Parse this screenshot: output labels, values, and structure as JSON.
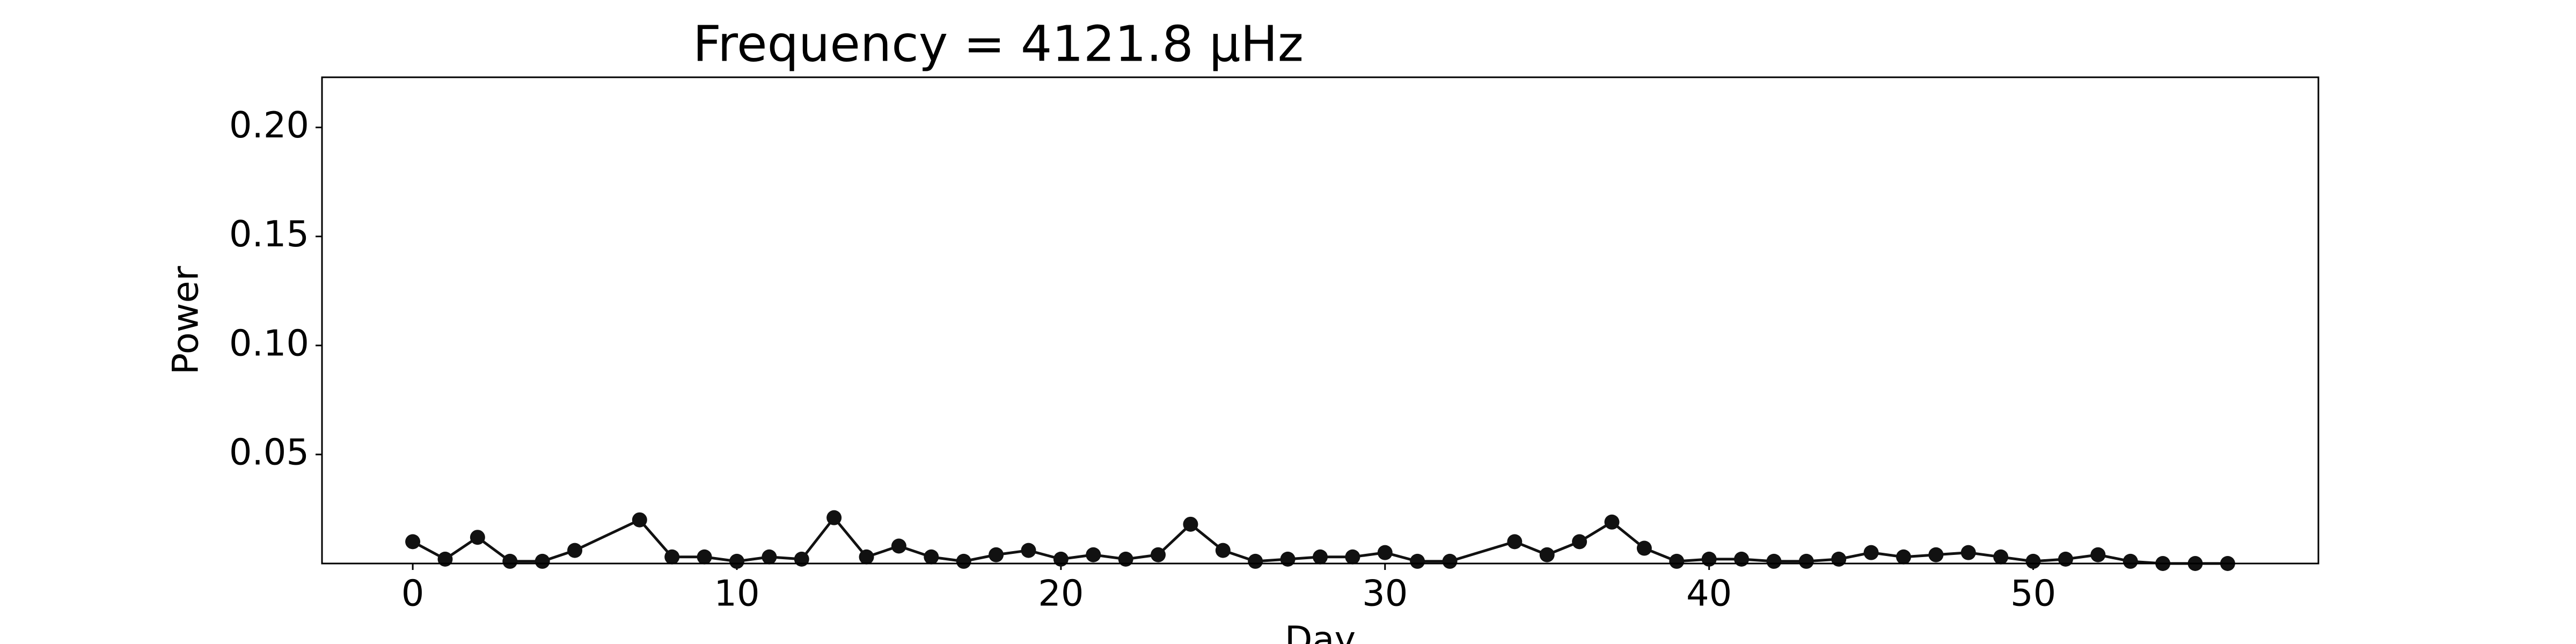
{
  "chart_data": {
    "type": "line",
    "title": "Frequency = 4121.8 μHz",
    "x_label": "Day",
    "y_label": "Power",
    "x": [
      0,
      1,
      2,
      3,
      4,
      5,
      7,
      8,
      9,
      10,
      11,
      12,
      13,
      14,
      15,
      16,
      17,
      18,
      19,
      20,
      21,
      22,
      23,
      24,
      25,
      26,
      27,
      28,
      29,
      30,
      31,
      32,
      34,
      35,
      36,
      37,
      38,
      39,
      40,
      41,
      42,
      43,
      44,
      45,
      46,
      47,
      48,
      49,
      50,
      51,
      52,
      53,
      54,
      55,
      56
    ],
    "values": [
      0.01,
      0.002,
      0.012,
      0.001,
      0.001,
      0.006,
      0.02,
      0.003,
      0.003,
      0.001,
      0.003,
      0.002,
      0.021,
      0.003,
      0.008,
      0.003,
      0.001,
      0.004,
      0.006,
      0.002,
      0.004,
      0.002,
      0.004,
      0.018,
      0.006,
      0.001,
      0.002,
      0.003,
      0.003,
      0.005,
      0.001,
      0.001,
      0.01,
      0.004,
      0.01,
      0.019,
      0.007,
      0.001,
      0.002,
      0.002,
      0.001,
      0.001,
      0.002,
      0.005,
      0.003,
      0.004,
      0.005,
      0.003,
      0.001,
      0.002,
      0.004,
      0.001,
      0,
      0,
      0
    ],
    "color": "#111111",
    "xlim": [
      -2.8,
      58.8
    ],
    "xticks": [
      0,
      10,
      20,
      30,
      40,
      50
    ],
    "ylim": [
      0,
      0.223
    ],
    "yticks": [
      0.05,
      {
        "value": 0.1,
        "label": "0.10"
      },
      0.15,
      {
        "value": 0.2,
        "label": "0.20"
      }
    ]
  }
}
